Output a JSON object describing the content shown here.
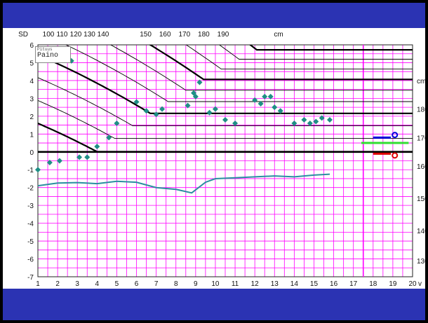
{
  "chart_data": {
    "type": "line",
    "title": "",
    "ylabel": "SD",
    "xlabel": "v",
    "top_axis_label": "cm",
    "right_axis_unit": "cm",
    "xlim": [
      1,
      20
    ],
    "ylim": [
      -7,
      6
    ],
    "x_ticks": [
      1,
      2,
      3,
      4,
      5,
      6,
      7,
      8,
      9,
      10,
      11,
      12,
      13,
      14,
      15,
      16,
      17,
      18,
      19,
      20
    ],
    "y_ticks": [
      -7,
      -6,
      -5,
      -4,
      -3,
      -2,
      -1,
      0,
      1,
      2,
      3,
      4,
      5,
      6
    ],
    "top_axis_ticks": [
      "100",
      "110",
      "120",
      "130",
      "140",
      "150",
      "160",
      "170",
      "180",
      "190"
    ],
    "right_axis_labels": [
      "130",
      "140",
      "150",
      "160",
      "170",
      "180"
    ],
    "grid": true,
    "patient_label": "Paino",
    "patient_sublabel": "Pituus",
    "series": [
      {
        "marker": "diamond",
        "color": "#1f8f86",
        "points": [
          [
            1.0,
            -1.0
          ],
          [
            1.6,
            -0.6
          ],
          [
            2.1,
            -0.5
          ],
          [
            2.7,
            5.1
          ],
          [
            3.1,
            -0.3
          ],
          [
            3.5,
            -0.3
          ],
          [
            4.0,
            0.3
          ],
          [
            4.6,
            0.8
          ],
          [
            5.0,
            1.6
          ],
          [
            6.0,
            2.8
          ],
          [
            6.5,
            2.3
          ],
          [
            7.0,
            2.1
          ],
          [
            7.3,
            2.4
          ],
          [
            8.6,
            2.6
          ],
          [
            8.9,
            3.3
          ],
          [
            9.0,
            3.1
          ],
          [
            9.2,
            3.9
          ],
          [
            9.7,
            2.2
          ],
          [
            10.0,
            2.4
          ],
          [
            10.5,
            1.8
          ],
          [
            11.0,
            1.6
          ],
          [
            12.0,
            2.9
          ],
          [
            12.3,
            2.7
          ],
          [
            12.5,
            3.1
          ],
          [
            12.8,
            3.1
          ],
          [
            13.0,
            2.5
          ],
          [
            13.3,
            2.3
          ],
          [
            14.0,
            1.6
          ],
          [
            14.5,
            1.8
          ],
          [
            14.8,
            1.6
          ],
          [
            15.1,
            1.7
          ],
          [
            15.4,
            1.9
          ],
          [
            15.8,
            1.8
          ]
        ]
      },
      {
        "marker": "line",
        "color": "#2a8fa0",
        "points": [
          [
            1.0,
            -1.9
          ],
          [
            2.0,
            -1.75
          ],
          [
            3.0,
            -1.72
          ],
          [
            4.0,
            -1.78
          ],
          [
            5.0,
            -1.65
          ],
          [
            6.0,
            -1.7
          ],
          [
            7.0,
            -2.0
          ],
          [
            8.0,
            -2.1
          ],
          [
            8.8,
            -2.3
          ],
          [
            9.5,
            -1.7
          ],
          [
            10.0,
            -1.5
          ],
          [
            11.0,
            -1.45
          ],
          [
            12.0,
            -1.4
          ],
          [
            13.0,
            -1.35
          ],
          [
            14.0,
            -1.4
          ],
          [
            15.0,
            -1.3
          ],
          [
            15.8,
            -1.25
          ]
        ]
      }
    ],
    "target_markers": [
      {
        "name": "target-blue",
        "color": "#0000dd",
        "x": [
          18.0,
          18.9
        ],
        "y": 0.8
      },
      {
        "name": "target-green",
        "color": "#33dd33",
        "x": [
          17.4,
          19.8
        ],
        "y": 0.5
      },
      {
        "name": "target-red",
        "color": "#dd0000",
        "x": [
          18.0,
          18.9
        ],
        "y": -0.1
      }
    ],
    "colors": {
      "grid": "#ff00ff",
      "curves": "#000000",
      "band": "#2b33b3",
      "panel": "#ffffff"
    }
  }
}
